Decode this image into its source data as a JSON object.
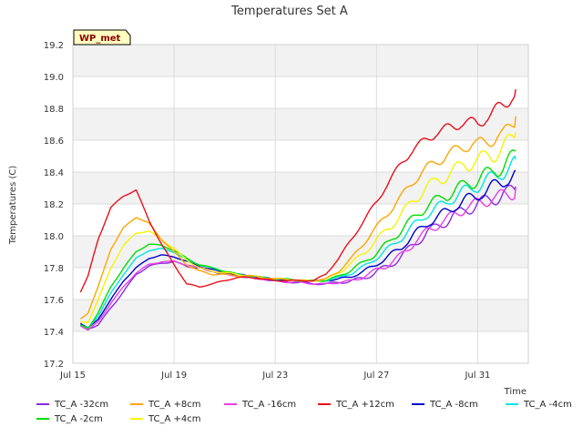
{
  "chart_data": {
    "type": "line",
    "title": "Temperatures Set A",
    "xlabel": "Time",
    "ylabel": "Temperatures (C)",
    "badge": "WP_met",
    "ylim": [
      17.2,
      19.2
    ],
    "yticks": [
      "17.2",
      "17.4",
      "17.6",
      "17.8",
      "18.0",
      "18.2",
      "18.4",
      "18.6",
      "18.8",
      "19.0",
      "19.2"
    ],
    "xticks": [
      "Jul 15",
      "Jul 19",
      "Jul 23",
      "Jul 27",
      "Jul 31"
    ],
    "xlim_days": [
      15,
      33
    ],
    "grid": true,
    "legend_position": "bottom",
    "series": [
      {
        "name": "TC_A -32cm",
        "color": "#8a2be2",
        "points": [
          [
            15.3,
            17.45
          ],
          [
            15.6,
            17.42
          ],
          [
            16.0,
            17.44
          ],
          [
            16.5,
            17.55
          ],
          [
            17.0,
            17.65
          ],
          [
            17.5,
            17.76
          ],
          [
            18.0,
            17.81
          ],
          [
            18.5,
            17.83
          ],
          [
            19.0,
            17.84
          ],
          [
            19.5,
            17.81
          ],
          [
            20.0,
            17.8
          ],
          [
            20.5,
            17.78
          ],
          [
            21.0,
            17.76
          ],
          [
            21.5,
            17.75
          ],
          [
            22.0,
            17.74
          ],
          [
            22.5,
            17.73
          ],
          [
            23.0,
            17.72
          ],
          [
            23.5,
            17.71
          ],
          [
            24.0,
            17.71
          ],
          [
            24.5,
            17.7
          ],
          [
            25.0,
            17.7
          ],
          [
            25.5,
            17.71
          ],
          [
            26.0,
            17.72
          ],
          [
            26.5,
            17.74
          ],
          [
            27.0,
            17.78
          ],
          [
            27.5,
            17.82
          ],
          [
            28.0,
            17.88
          ],
          [
            28.5,
            17.96
          ],
          [
            29.0,
            18.03
          ],
          [
            29.5,
            18.08
          ],
          [
            30.0,
            18.13
          ],
          [
            30.5,
            18.18
          ],
          [
            31.0,
            18.21
          ],
          [
            31.5,
            18.25
          ],
          [
            32.0,
            18.27
          ],
          [
            32.5,
            18.31
          ]
        ]
      },
      {
        "name": "TC_A +8cm",
        "color": "#ffa500",
        "points": [
          [
            15.3,
            17.48
          ],
          [
            15.6,
            17.52
          ],
          [
            16.0,
            17.68
          ],
          [
            16.5,
            17.92
          ],
          [
            17.0,
            18.05
          ],
          [
            17.5,
            18.12
          ],
          [
            18.0,
            18.08
          ],
          [
            18.5,
            17.98
          ],
          [
            19.0,
            17.9
          ],
          [
            19.5,
            17.82
          ],
          [
            20.0,
            17.78
          ],
          [
            20.5,
            17.76
          ],
          [
            21.0,
            17.76
          ],
          [
            21.5,
            17.75
          ],
          [
            22.0,
            17.75
          ],
          [
            22.5,
            17.74
          ],
          [
            23.0,
            17.73
          ],
          [
            23.5,
            17.73
          ],
          [
            24.0,
            17.72
          ],
          [
            24.5,
            17.72
          ],
          [
            25.0,
            17.73
          ],
          [
            25.5,
            17.78
          ],
          [
            26.0,
            17.86
          ],
          [
            26.5,
            17.96
          ],
          [
            27.0,
            18.06
          ],
          [
            27.5,
            18.16
          ],
          [
            28.0,
            18.26
          ],
          [
            28.5,
            18.36
          ],
          [
            29.0,
            18.44
          ],
          [
            29.5,
            18.49
          ],
          [
            30.0,
            18.54
          ],
          [
            30.5,
            18.58
          ],
          [
            31.0,
            18.59
          ],
          [
            31.5,
            18.62
          ],
          [
            32.0,
            18.65
          ],
          [
            32.5,
            18.75
          ]
        ]
      },
      {
        "name": "TC_A -16cm",
        "color": "#e83ee8",
        "points": [
          [
            15.3,
            17.44
          ],
          [
            15.6,
            17.41
          ],
          [
            16.0,
            17.46
          ],
          [
            16.5,
            17.58
          ],
          [
            17.0,
            17.68
          ],
          [
            17.5,
            17.77
          ],
          [
            18.0,
            17.82
          ],
          [
            18.5,
            17.84
          ],
          [
            19.0,
            17.84
          ],
          [
            19.5,
            17.82
          ],
          [
            20.0,
            17.8
          ],
          [
            20.5,
            17.78
          ],
          [
            21.0,
            17.76
          ],
          [
            21.5,
            17.75
          ],
          [
            22.0,
            17.74
          ],
          [
            22.5,
            17.73
          ],
          [
            23.0,
            17.72
          ],
          [
            23.5,
            17.71
          ],
          [
            24.0,
            17.71
          ],
          [
            24.5,
            17.7
          ],
          [
            25.0,
            17.7
          ],
          [
            25.5,
            17.71
          ],
          [
            26.0,
            17.72
          ],
          [
            26.5,
            17.75
          ],
          [
            27.0,
            17.79
          ],
          [
            27.5,
            17.83
          ],
          [
            28.0,
            17.89
          ],
          [
            28.5,
            17.97
          ],
          [
            29.0,
            18.04
          ],
          [
            29.5,
            18.09
          ],
          [
            30.0,
            18.14
          ],
          [
            30.5,
            18.19
          ],
          [
            31.0,
            18.22
          ],
          [
            31.5,
            18.25
          ],
          [
            32.0,
            18.27
          ],
          [
            32.5,
            18.3
          ]
        ]
      },
      {
        "name": "TC_A +12cm",
        "color": "#e8101b",
        "points": [
          [
            15.3,
            17.65
          ],
          [
            15.6,
            17.75
          ],
          [
            16.0,
            17.98
          ],
          [
            16.5,
            18.18
          ],
          [
            17.0,
            18.25
          ],
          [
            17.5,
            18.29
          ],
          [
            18.0,
            18.1
          ],
          [
            18.5,
            17.95
          ],
          [
            19.0,
            17.82
          ],
          [
            19.5,
            17.7
          ],
          [
            20.0,
            17.68
          ],
          [
            20.5,
            17.7
          ],
          [
            21.0,
            17.72
          ],
          [
            21.5,
            17.74
          ],
          [
            22.0,
            17.74
          ],
          [
            22.5,
            17.73
          ],
          [
            23.0,
            17.72
          ],
          [
            23.5,
            17.72
          ],
          [
            24.0,
            17.72
          ],
          [
            24.5,
            17.72
          ],
          [
            25.0,
            17.76
          ],
          [
            25.5,
            17.86
          ],
          [
            26.0,
            17.98
          ],
          [
            26.5,
            18.1
          ],
          [
            27.0,
            18.22
          ],
          [
            27.5,
            18.35
          ],
          [
            28.0,
            18.47
          ],
          [
            28.5,
            18.56
          ],
          [
            29.0,
            18.62
          ],
          [
            29.5,
            18.67
          ],
          [
            30.0,
            18.7
          ],
          [
            30.5,
            18.73
          ],
          [
            31.0,
            18.72
          ],
          [
            31.5,
            18.78
          ],
          [
            32.0,
            18.84
          ],
          [
            32.5,
            18.92
          ]
        ]
      },
      {
        "name": "TC_A -8cm",
        "color": "#0000cc",
        "points": [
          [
            15.3,
            17.45
          ],
          [
            15.6,
            17.42
          ],
          [
            16.0,
            17.48
          ],
          [
            16.5,
            17.6
          ],
          [
            17.0,
            17.72
          ],
          [
            17.5,
            17.8
          ],
          [
            18.0,
            17.86
          ],
          [
            18.5,
            17.88
          ],
          [
            19.0,
            17.87
          ],
          [
            19.5,
            17.84
          ],
          [
            20.0,
            17.81
          ],
          [
            20.5,
            17.79
          ],
          [
            21.0,
            17.77
          ],
          [
            21.5,
            17.76
          ],
          [
            22.0,
            17.75
          ],
          [
            22.5,
            17.74
          ],
          [
            23.0,
            17.73
          ],
          [
            23.5,
            17.72
          ],
          [
            24.0,
            17.72
          ],
          [
            24.5,
            17.72
          ],
          [
            25.0,
            17.72
          ],
          [
            25.5,
            17.73
          ],
          [
            26.0,
            17.75
          ],
          [
            26.5,
            17.78
          ],
          [
            27.0,
            17.83
          ],
          [
            27.5,
            17.88
          ],
          [
            28.0,
            17.94
          ],
          [
            28.5,
            18.02
          ],
          [
            29.0,
            18.09
          ],
          [
            29.5,
            18.14
          ],
          [
            30.0,
            18.19
          ],
          [
            30.5,
            18.24
          ],
          [
            31.0,
            18.27
          ],
          [
            31.5,
            18.32
          ],
          [
            32.0,
            18.36
          ],
          [
            32.5,
            18.41
          ]
        ]
      },
      {
        "name": "TC_A -4cm",
        "color": "#00e5e5",
        "points": [
          [
            15.3,
            17.44
          ],
          [
            15.6,
            17.42
          ],
          [
            16.0,
            17.5
          ],
          [
            16.5,
            17.64
          ],
          [
            17.0,
            17.76
          ],
          [
            17.5,
            17.86
          ],
          [
            18.0,
            17.91
          ],
          [
            18.5,
            17.92
          ],
          [
            19.0,
            17.9
          ],
          [
            19.5,
            17.85
          ],
          [
            20.0,
            17.82
          ],
          [
            20.5,
            17.8
          ],
          [
            21.0,
            17.78
          ],
          [
            21.5,
            17.76
          ],
          [
            22.0,
            17.75
          ],
          [
            22.5,
            17.74
          ],
          [
            23.0,
            17.73
          ],
          [
            23.5,
            17.73
          ],
          [
            24.0,
            17.72
          ],
          [
            24.5,
            17.72
          ],
          [
            25.0,
            17.72
          ],
          [
            25.5,
            17.74
          ],
          [
            26.0,
            17.77
          ],
          [
            26.5,
            17.81
          ],
          [
            27.0,
            17.87
          ],
          [
            27.5,
            17.93
          ],
          [
            28.0,
            18.0
          ],
          [
            28.5,
            18.08
          ],
          [
            29.0,
            18.15
          ],
          [
            29.5,
            18.2
          ],
          [
            30.0,
            18.25
          ],
          [
            30.5,
            18.3
          ],
          [
            31.0,
            18.33
          ],
          [
            31.5,
            18.38
          ],
          [
            32.0,
            18.42
          ],
          [
            32.5,
            18.48
          ]
        ]
      },
      {
        "name": "TC_A -2cm",
        "color": "#00dd00",
        "points": [
          [
            15.3,
            17.44
          ],
          [
            15.6,
            17.42
          ],
          [
            16.0,
            17.52
          ],
          [
            16.5,
            17.68
          ],
          [
            17.0,
            17.8
          ],
          [
            17.5,
            17.9
          ],
          [
            18.0,
            17.95
          ],
          [
            18.5,
            17.94
          ],
          [
            19.0,
            17.91
          ],
          [
            19.5,
            17.86
          ],
          [
            20.0,
            17.82
          ],
          [
            20.5,
            17.8
          ],
          [
            21.0,
            17.78
          ],
          [
            21.5,
            17.76
          ],
          [
            22.0,
            17.75
          ],
          [
            22.5,
            17.74
          ],
          [
            23.0,
            17.73
          ],
          [
            23.5,
            17.73
          ],
          [
            24.0,
            17.72
          ],
          [
            24.5,
            17.72
          ],
          [
            25.0,
            17.72
          ],
          [
            25.5,
            17.75
          ],
          [
            26.0,
            17.79
          ],
          [
            26.5,
            17.84
          ],
          [
            27.0,
            17.9
          ],
          [
            27.5,
            17.97
          ],
          [
            28.0,
            18.05
          ],
          [
            28.5,
            18.13
          ],
          [
            29.0,
            18.2
          ],
          [
            29.5,
            18.25
          ],
          [
            30.0,
            18.29
          ],
          [
            30.5,
            18.34
          ],
          [
            31.0,
            18.37
          ],
          [
            31.5,
            18.42
          ],
          [
            32.0,
            18.46
          ],
          [
            32.5,
            18.53
          ]
        ]
      },
      {
        "name": "TC_A +4cm",
        "color": "#f5f500",
        "points": [
          [
            15.3,
            17.46
          ],
          [
            15.6,
            17.46
          ],
          [
            16.0,
            17.6
          ],
          [
            16.5,
            17.8
          ],
          [
            17.0,
            17.94
          ],
          [
            17.5,
            18.02
          ],
          [
            18.0,
            18.03
          ],
          [
            18.5,
            17.98
          ],
          [
            19.0,
            17.92
          ],
          [
            19.5,
            17.85
          ],
          [
            20.0,
            17.8
          ],
          [
            20.5,
            17.78
          ],
          [
            21.0,
            17.77
          ],
          [
            21.5,
            17.76
          ],
          [
            22.0,
            17.75
          ],
          [
            22.5,
            17.74
          ],
          [
            23.0,
            17.73
          ],
          [
            23.5,
            17.73
          ],
          [
            24.0,
            17.72
          ],
          [
            24.5,
            17.72
          ],
          [
            25.0,
            17.73
          ],
          [
            25.5,
            17.77
          ],
          [
            26.0,
            17.83
          ],
          [
            26.5,
            17.9
          ],
          [
            27.0,
            17.98
          ],
          [
            27.5,
            18.06
          ],
          [
            28.0,
            18.15
          ],
          [
            28.5,
            18.24
          ],
          [
            29.0,
            18.32
          ],
          [
            29.5,
            18.37
          ],
          [
            30.0,
            18.42
          ],
          [
            30.5,
            18.47
          ],
          [
            31.0,
            18.49
          ],
          [
            31.5,
            18.53
          ],
          [
            32.0,
            18.57
          ],
          [
            32.5,
            18.65
          ]
        ]
      }
    ]
  }
}
